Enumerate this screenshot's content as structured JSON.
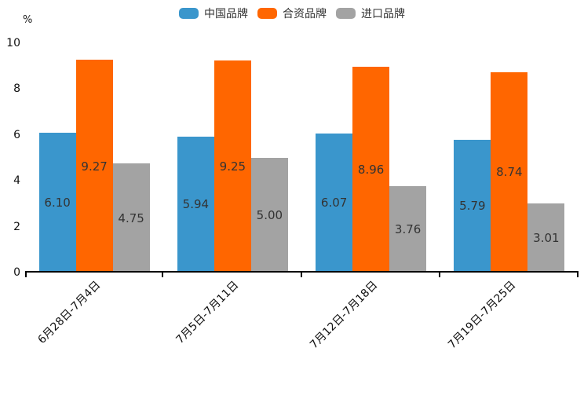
{
  "chart_data": {
    "type": "bar",
    "title": "",
    "unit": "%",
    "xlabel": "",
    "ylabel": "%",
    "ylim": [
      0,
      10
    ],
    "yticks": [
      0,
      2,
      4,
      6,
      8,
      10
    ],
    "grid": false,
    "legend_position": "top",
    "categories": [
      "6月28日-7月4日",
      "7月5日-7月11日",
      "7月12日-7月18日",
      "7月19日-7月25日"
    ],
    "series": [
      {
        "name": "中国品牌",
        "color": "#3A96CC",
        "values": [
          6.1,
          5.94,
          6.07,
          5.79
        ],
        "labels": [
          "6.10",
          "5.94",
          "6.07",
          "5.79"
        ]
      },
      {
        "name": "合资品牌",
        "color": "#FF6600",
        "values": [
          9.27,
          9.25,
          8.96,
          8.74
        ],
        "labels": [
          "9.27",
          "9.25",
          "8.96",
          "8.74"
        ]
      },
      {
        "name": "进口品牌",
        "color": "#A3A3A3",
        "values": [
          4.75,
          5.0,
          3.76,
          3.01
        ],
        "labels": [
          "4.75",
          "5.00",
          "3.76",
          "3.01"
        ]
      }
    ],
    "bar_value_label_color": "#333333",
    "axis_color": "#000000"
  }
}
